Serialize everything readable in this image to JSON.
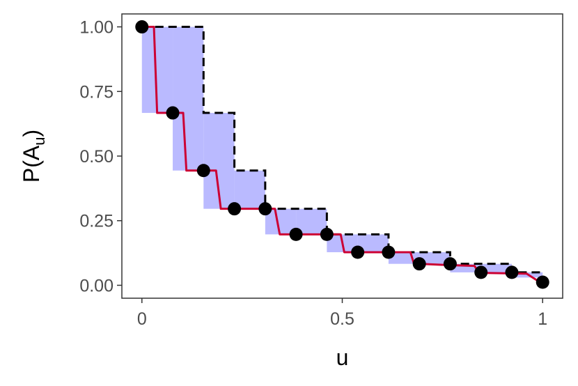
{
  "chart_data": {
    "type": "line",
    "xlabel": "u",
    "ylabel": {
      "main": "P(A",
      "sub": "u",
      "close": ")"
    },
    "xlim": [
      -0.05,
      1.05
    ],
    "ylim": [
      -0.05,
      1.05
    ],
    "x_ticks": [
      0,
      0.5,
      1
    ],
    "x_tick_labels": [
      "0",
      "0.5",
      "1"
    ],
    "y_ticks": [
      0,
      0.25,
      0.5,
      0.75,
      1
    ],
    "y_tick_labels": [
      "0.00",
      "0.25",
      "0.50",
      "0.75",
      "1.00"
    ],
    "grid": false,
    "legend": "none",
    "points": {
      "x": [
        0,
        0.0769,
        0.1538,
        0.2308,
        0.3077,
        0.3846,
        0.4615,
        0.5385,
        0.6154,
        0.6923,
        0.7692,
        0.8462,
        0.9231,
        1.0
      ],
      "y": [
        1.0,
        0.667,
        0.444,
        0.296,
        0.296,
        0.197,
        0.197,
        0.128,
        0.128,
        0.083,
        0.083,
        0.05,
        0.05,
        0.012
      ]
    },
    "lower_step": {
      "x": [
        0,
        0.0769,
        0.1538,
        0.2308,
        0.3077,
        0.3846,
        0.4615,
        0.5385,
        0.6154,
        0.6923,
        0.7692,
        0.8462,
        0.9231,
        1.0
      ],
      "y": [
        0.667,
        0.444,
        0.296,
        0.296,
        0.197,
        0.197,
        0.128,
        0.128,
        0.083,
        0.083,
        0.05,
        0.05,
        0.03,
        0.012
      ]
    },
    "upper_step": {
      "x": [
        0,
        0.0769,
        0.1538,
        0.2308,
        0.3077,
        0.3846,
        0.4615,
        0.5385,
        0.6154,
        0.6923,
        0.7692,
        0.8462,
        0.9231,
        1.0
      ],
      "y": [
        1.0,
        1.0,
        0.667,
        0.444,
        0.296,
        0.296,
        0.197,
        0.197,
        0.128,
        0.128,
        0.083,
        0.083,
        0.05,
        0.05
      ]
    },
    "red_curve": {
      "x": [
        0,
        0.03,
        0.038,
        0.077,
        0.103,
        0.111,
        0.154,
        0.185,
        0.197,
        0.231,
        0.308,
        0.332,
        0.344,
        0.385,
        0.462,
        0.496,
        0.505,
        0.538,
        0.615,
        0.67,
        0.679,
        0.692,
        0.769,
        0.83,
        0.84,
        0.846,
        0.923,
        0.96,
        0.985,
        1.0
      ],
      "y": [
        1.0,
        1.0,
        0.667,
        0.667,
        0.667,
        0.444,
        0.444,
        0.444,
        0.296,
        0.296,
        0.296,
        0.296,
        0.197,
        0.197,
        0.197,
        0.197,
        0.128,
        0.128,
        0.128,
        0.128,
        0.083,
        0.083,
        0.078,
        0.075,
        0.05,
        0.048,
        0.046,
        0.045,
        0.02,
        0.02
      ]
    },
    "colors": {
      "band_fill": "#b3b3ff",
      "curve": "#cc0033",
      "points": "#000000",
      "dashed": "#000000",
      "panel_border": "#333333",
      "tick_text": "#4d4d4d"
    }
  }
}
